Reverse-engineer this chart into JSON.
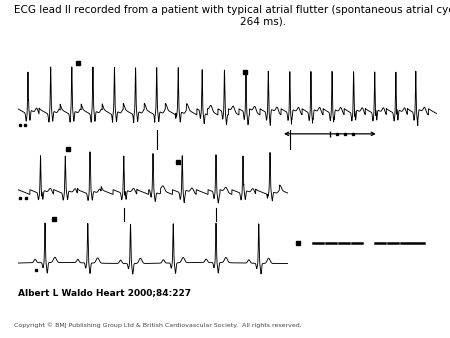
{
  "title": "ECG lead II recorded from a patient with typical atrial flutter (spontaneous atrial cycle length of\n264 ms).",
  "citation": "Albert L Waldo Heart 2000;84:227",
  "copyright": "Copyright © BMJ Publishing Group Ltd & British Cardiovascular Society.  All rights reserved.",
  "bg_color": "#ffffff",
  "ecg_color": "#000000",
  "heart_bg": "#c0392b",
  "heart_text": "#ffffff",
  "title_fontsize": 7.5,
  "citation_fontsize": 6.5,
  "copyright_fontsize": 4.5,
  "strip1_xlim": [
    0,
    10.5
  ],
  "strip2_xlim": [
    0,
    6.5
  ],
  "strip3_xlim": [
    0,
    6.5
  ],
  "ecg_ylim": [
    -0.6,
    1.9
  ]
}
